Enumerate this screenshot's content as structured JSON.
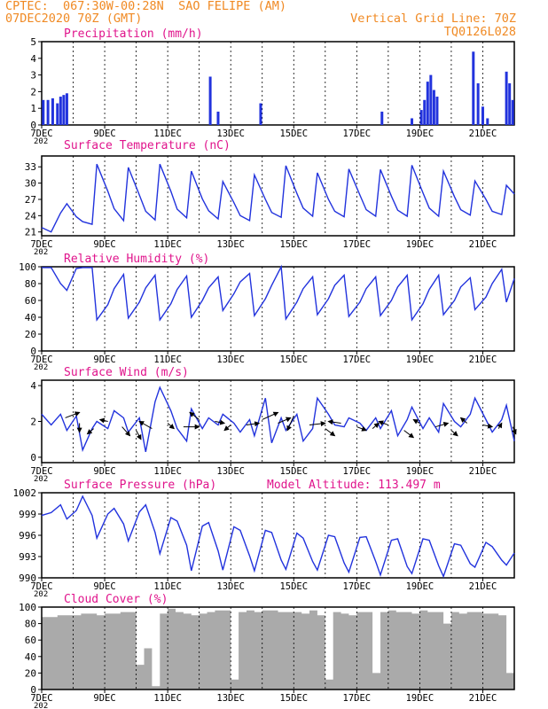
{
  "header": {
    "line1_left": "CPTEC:  067:30W-00:28N  SAO FELIPE (AM)",
    "line2_left": "07DEC2020 70Z (GMT)",
    "line1_right": "Vertical Grid Line: 70Z",
    "line2_right": "TQ0126L028"
  },
  "colors": {
    "header": "#f08a24",
    "title": "#e0148c",
    "series": "#2233dd",
    "cloud": "#aaaaaa",
    "wind_arrow": "#000000",
    "frame": "#000000"
  },
  "x_axis": {
    "ticks": [
      "7DEC",
      "9DEC",
      "11DEC",
      "13DEC",
      "15DEC",
      "17DEC",
      "19DEC",
      "21DEC"
    ],
    "tick_days": [
      7,
      9,
      11,
      13,
      15,
      17,
      19,
      21
    ],
    "range_days": [
      7,
      22
    ],
    "year_label": "202"
  },
  "chart_data": [
    {
      "type": "bar",
      "title": "Precipitation  (mm/h)",
      "ylim": [
        0,
        5
      ],
      "yticks": [
        0,
        1,
        2,
        3,
        4,
        5
      ],
      "x_unit": "day of Dec 2020",
      "x": [
        7.05,
        7.2,
        7.35,
        7.5,
        7.6,
        7.7,
        7.8,
        12.35,
        12.6,
        13.95,
        17.8,
        18.75,
        19.05,
        19.15,
        19.25,
        19.35,
        19.45,
        19.55,
        20.7,
        20.85,
        21.0,
        21.15,
        21.75,
        21.85,
        21.95
      ],
      "values": [
        1.5,
        1.5,
        1.6,
        1.3,
        1.7,
        1.8,
        1.9,
        2.9,
        0.8,
        1.3,
        0.8,
        0.4,
        0.9,
        1.5,
        2.6,
        3.0,
        2.1,
        1.7,
        4.4,
        2.5,
        1.1,
        0.4,
        3.2,
        2.5,
        1.5
      ]
    },
    {
      "type": "line",
      "title": "Surface Temperature  (nC)",
      "ylim": [
        20.3,
        35
      ],
      "yticks": [
        21,
        24,
        27,
        30,
        33
      ],
      "x_unit": "day of Dec 2020",
      "x": [
        7.0,
        7.3,
        7.6,
        7.8,
        8.1,
        8.3,
        8.6,
        8.75,
        9.1,
        9.3,
        9.6,
        9.75,
        10.1,
        10.3,
        10.6,
        10.75,
        11.1,
        11.3,
        11.6,
        11.75,
        12.1,
        12.3,
        12.6,
        12.75,
        13.1,
        13.3,
        13.6,
        13.75,
        14.1,
        14.3,
        14.6,
        14.75,
        15.1,
        15.3,
        15.6,
        15.75,
        16.1,
        16.3,
        16.6,
        16.75,
        17.1,
        17.3,
        17.6,
        17.75,
        18.1,
        18.3,
        18.6,
        18.75,
        19.1,
        19.3,
        19.6,
        19.75,
        20.1,
        20.3,
        20.6,
        20.75,
        21.1,
        21.3,
        21.6,
        21.75,
        22.0
      ],
      "values": [
        21.8,
        21.0,
        24.5,
        26.2,
        23.8,
        22.9,
        22.4,
        33.5,
        28.5,
        25.3,
        23.1,
        32.9,
        27.8,
        24.8,
        23.2,
        33.5,
        28.5,
        25.2,
        23.6,
        32.2,
        27.1,
        24.9,
        23.4,
        30.3,
        26.4,
        24.0,
        23.1,
        31.5,
        27.0,
        24.6,
        23.7,
        33.2,
        28.1,
        25.4,
        23.9,
        31.9,
        27.0,
        24.8,
        23.8,
        32.6,
        27.8,
        25.1,
        23.9,
        32.5,
        27.6,
        25.0,
        23.9,
        33.3,
        28.2,
        25.4,
        23.9,
        32.2,
        27.5,
        25.1,
        24.1,
        30.4,
        27.0,
        24.8,
        24.2,
        29.6,
        28.0
      ]
    },
    {
      "type": "line",
      "title": "Relative Humidity  (%)",
      "ylim": [
        0,
        100
      ],
      "yticks": [
        0,
        20,
        40,
        60,
        80,
        100
      ],
      "x_unit": "day of Dec 2020",
      "x": [
        7.0,
        7.3,
        7.6,
        7.8,
        8.1,
        8.3,
        8.6,
        8.75,
        9.1,
        9.3,
        9.6,
        9.75,
        10.1,
        10.3,
        10.6,
        10.75,
        11.1,
        11.3,
        11.6,
        11.75,
        12.1,
        12.3,
        12.6,
        12.75,
        13.1,
        13.3,
        13.6,
        13.75,
        14.1,
        14.3,
        14.6,
        14.75,
        15.1,
        15.3,
        15.6,
        15.75,
        16.1,
        16.3,
        16.6,
        16.75,
        17.1,
        17.3,
        17.6,
        17.75,
        18.1,
        18.3,
        18.6,
        18.75,
        19.1,
        19.3,
        19.6,
        19.75,
        20.1,
        20.3,
        20.6,
        20.75,
        21.1,
        21.3,
        21.6,
        21.75,
        22.0
      ],
      "values": [
        99,
        99,
        80,
        72,
        98,
        99,
        99,
        37,
        55,
        74,
        91,
        39,
        58,
        75,
        90,
        37,
        56,
        73,
        89,
        40,
        60,
        75,
        88,
        48,
        68,
        82,
        92,
        42,
        62,
        78,
        100,
        38,
        58,
        74,
        88,
        43,
        62,
        78,
        90,
        41,
        58,
        74,
        88,
        42,
        60,
        76,
        90,
        37,
        56,
        73,
        90,
        43,
        60,
        76,
        87,
        49,
        64,
        80,
        97,
        58,
        86
      ]
    },
    {
      "type": "line",
      "title": "Surface Wind  (m/s)",
      "ylim": [
        -0.3,
        4.3
      ],
      "yticks": [
        0,
        2,
        4
      ],
      "x_unit": "day of Dec 2020",
      "x": [
        7.0,
        7.3,
        7.6,
        7.8,
        8.1,
        8.3,
        8.6,
        8.75,
        9.1,
        9.3,
        9.6,
        9.75,
        10.1,
        10.3,
        10.6,
        10.75,
        11.1,
        11.3,
        11.6,
        11.75,
        12.1,
        12.3,
        12.6,
        12.75,
        13.1,
        13.3,
        13.6,
        13.75,
        14.1,
        14.3,
        14.6,
        14.75,
        15.1,
        15.3,
        15.6,
        15.75,
        16.1,
        16.3,
        16.6,
        16.75,
        17.1,
        17.3,
        17.6,
        17.75,
        18.1,
        18.3,
        18.6,
        18.75,
        19.1,
        19.3,
        19.6,
        19.75,
        20.1,
        20.3,
        20.6,
        20.75,
        21.1,
        21.3,
        21.6,
        21.75,
        22.0
      ],
      "values": [
        2.4,
        1.8,
        2.4,
        1.5,
        2.3,
        0.4,
        1.6,
        2.0,
        1.6,
        2.6,
        2.2,
        1.4,
        2.2,
        0.3,
        3.1,
        3.9,
        2.6,
        1.6,
        0.9,
        2.7,
        1.6,
        2.2,
        1.8,
        2.4,
        1.9,
        1.4,
        2.1,
        1.2,
        3.3,
        0.8,
        2.2,
        1.5,
        2.4,
        0.9,
        1.6,
        3.3,
        2.4,
        1.8,
        1.7,
        2.2,
        1.9,
        1.5,
        2.2,
        1.6,
        2.6,
        1.2,
        2.1,
        2.8,
        1.6,
        2.2,
        1.4,
        3.0,
        2.0,
        1.7,
        2.4,
        3.3,
        2.1,
        1.4,
        2.1,
        2.9,
        0.9
      ],
      "wind_arrows": {
        "x": [
          7.75,
          8.2,
          8.65,
          9.1,
          9.55,
          10.0,
          10.5,
          11.0,
          11.5,
          12.0,
          12.5,
          13.0,
          13.5,
          14.0,
          14.5,
          15.0,
          15.5,
          16.0,
          16.5,
          17.0,
          17.5,
          18.0,
          18.5,
          19.0,
          19.5,
          20.0,
          20.5,
          21.0,
          21.5,
          21.95
        ],
        "y": [
          2.2,
          1.9,
          1.6,
          2.0,
          1.7,
          1.5,
          1.6,
          1.9,
          1.7,
          2.1,
          2.0,
          1.8,
          1.8,
          2.1,
          1.9,
          2.3,
          1.8,
          1.6,
          1.9,
          1.7,
          1.6,
          1.8,
          1.5,
          1.9,
          1.7,
          1.5,
          1.9,
          1.8,
          1.6,
          1.7
        ],
        "dx": [
          0.45,
          0.0,
          -0.2,
          -0.25,
          0.25,
          0.15,
          -0.4,
          0.2,
          0.5,
          -0.3,
          0.3,
          -0.2,
          0.4,
          0.5,
          0.4,
          -0.2,
          0.5,
          0.3,
          -0.4,
          0.3,
          0.2,
          -0.3,
          0.3,
          -0.2,
          0.4,
          0.2,
          -0.2,
          0.3,
          0.1,
          0.1
        ],
        "dy": [
          0.3,
          -0.5,
          -0.3,
          0.1,
          -0.5,
          -0.5,
          0.4,
          -0.3,
          0.0,
          0.4,
          -0.1,
          -0.3,
          0.1,
          0.4,
          0.3,
          -0.8,
          0.1,
          -0.4,
          0.1,
          -0.2,
          0.3,
          0.2,
          -0.4,
          0.2,
          0.2,
          -0.3,
          0.3,
          -0.1,
          0.3,
          -0.4
        ]
      }
    },
    {
      "type": "line",
      "title": "Surface Pressure  (hPa)",
      "annotation": "Model Altitude: 113.497  m",
      "ylim": [
        990,
        1002
      ],
      "yticks": [
        990,
        993,
        996,
        999,
        1002
      ],
      "x_unit": "day of Dec 2020",
      "x": [
        7.0,
        7.3,
        7.6,
        7.8,
        8.1,
        8.3,
        8.6,
        8.75,
        9.1,
        9.3,
        9.6,
        9.75,
        10.1,
        10.3,
        10.6,
        10.75,
        11.1,
        11.3,
        11.6,
        11.75,
        12.1,
        12.3,
        12.6,
        12.75,
        13.1,
        13.3,
        13.6,
        13.75,
        14.1,
        14.3,
        14.6,
        14.75,
        15.1,
        15.3,
        15.6,
        15.75,
        16.1,
        16.3,
        16.6,
        16.75,
        17.1,
        17.3,
        17.6,
        17.75,
        18.1,
        18.3,
        18.6,
        18.75,
        19.1,
        19.3,
        19.6,
        19.75,
        20.1,
        20.3,
        20.6,
        20.75,
        21.1,
        21.3,
        21.6,
        21.75,
        22.0
      ],
      "values": [
        998.8,
        999.2,
        1000.3,
        998.3,
        999.5,
        1001.5,
        998.8,
        995.6,
        999.0,
        999.8,
        997.6,
        995.2,
        999.3,
        1000.3,
        996.4,
        993.4,
        998.5,
        998.0,
        994.6,
        991.0,
        997.3,
        997.8,
        993.8,
        991.1,
        997.2,
        996.7,
        993.1,
        991.0,
        996.7,
        996.4,
        992.5,
        991.2,
        996.3,
        995.6,
        992.3,
        991.1,
        996.0,
        995.8,
        992.1,
        990.8,
        995.7,
        995.8,
        992.3,
        990.4,
        995.3,
        995.5,
        991.6,
        990.6,
        995.5,
        995.3,
        991.7,
        990.2,
        994.8,
        994.6,
        992.0,
        991.5,
        995.0,
        994.4,
        992.5,
        991.8,
        993.5
      ]
    },
    {
      "type": "area",
      "title": "Cloud Cover  (%)",
      "ylim": [
        0,
        100
      ],
      "yticks": [
        0,
        20,
        40,
        60,
        80,
        100
      ],
      "x_unit": "day of Dec 2020",
      "x": [
        7.0,
        7.25,
        7.5,
        7.75,
        8.0,
        8.25,
        8.5,
        8.75,
        9.0,
        9.25,
        9.5,
        9.75,
        10.0,
        10.25,
        10.5,
        10.75,
        11.0,
        11.25,
        11.5,
        11.75,
        12.0,
        12.25,
        12.5,
        12.75,
        13.0,
        13.25,
        13.5,
        13.75,
        14.0,
        14.25,
        14.5,
        14.75,
        15.0,
        15.25,
        15.5,
        15.75,
        16.0,
        16.25,
        16.5,
        16.75,
        17.0,
        17.25,
        17.5,
        17.75,
        18.0,
        18.25,
        18.5,
        18.75,
        19.0,
        19.25,
        19.5,
        19.75,
        20.0,
        20.25,
        20.5,
        20.75,
        21.0,
        21.25,
        21.5,
        21.75,
        22.0
      ],
      "values": [
        88,
        88,
        90,
        90,
        90,
        92,
        92,
        90,
        92,
        92,
        94,
        94,
        30,
        50,
        4,
        92,
        98,
        94,
        92,
        90,
        92,
        94,
        96,
        96,
        12,
        94,
        96,
        94,
        96,
        96,
        94,
        94,
        94,
        92,
        96,
        90,
        12,
        94,
        92,
        90,
        94,
        94,
        20,
        94,
        96,
        94,
        94,
        92,
        96,
        94,
        94,
        80,
        94,
        92,
        94,
        94,
        92,
        92,
        90,
        20,
        92
      ]
    }
  ]
}
